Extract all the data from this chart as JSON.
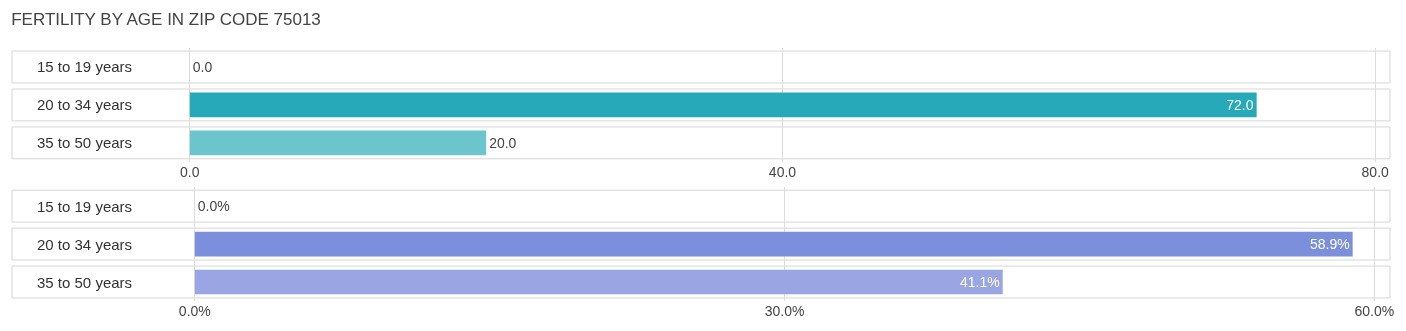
{
  "chart_data": [
    {
      "type": "bar",
      "orientation": "horizontal",
      "title": "FERTILITY BY AGE IN ZIP CODE 75013",
      "categories": [
        "15 to 19 years",
        "20 to 34 years",
        "35 to 50 years"
      ],
      "values": [
        0.0,
        72.0,
        20.0
      ],
      "colors": [
        "#8fd3d9",
        "#26a9b8",
        "#6cc4cc"
      ],
      "xlim": [
        -12,
        81
      ],
      "xticks": [
        {
          "value": 0,
          "label": "0.0"
        },
        {
          "value": 40,
          "label": "40.0"
        },
        {
          "value": 80,
          "label": "80.0"
        }
      ],
      "grid": "x",
      "value_labels": [
        "0.0",
        "72.0",
        "20.0"
      ]
    },
    {
      "type": "bar",
      "orientation": "horizontal",
      "categories": [
        "15 to 19 years",
        "20 to 34 years",
        "35 to 50 years"
      ],
      "values": [
        0.0,
        58.9,
        41.1
      ],
      "value_labels": [
        "0.0%",
        "58.9%",
        "41.1%"
      ],
      "colors": [
        "#b8c2ec",
        "#7b8fdd",
        "#9aa6e4"
      ],
      "xlim": [
        -9.3,
        60.8
      ],
      "xticks": [
        {
          "value": 0,
          "label": "0.0%"
        },
        {
          "value": 30,
          "label": "30.0%"
        },
        {
          "value": 60,
          "label": "60.0%"
        }
      ],
      "grid": "x"
    }
  ]
}
